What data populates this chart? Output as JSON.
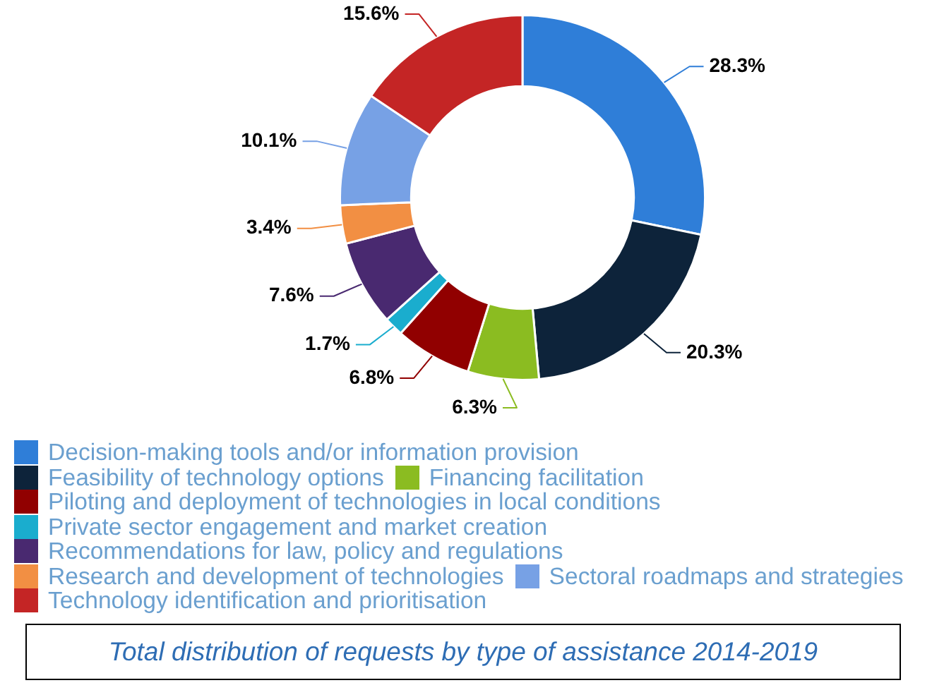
{
  "chart_data": {
    "type": "donut",
    "title": "Total distribution of requests by type of assistance 2014-2019",
    "categories": [
      "Decision-making tools and/or information provision",
      "Feasibility of technology options",
      "Financing facilitation",
      "Piloting and deployment of technologies in local conditions",
      "Private sector engagement and market creation",
      "Recommendations for law, policy and regulations",
      "Research and development of technologies",
      "Sectoral roadmaps and strategies",
      "Technology identification and prioritisation"
    ],
    "values": [
      28.3,
      20.3,
      6.3,
      6.8,
      1.7,
      7.6,
      3.4,
      10.1,
      15.6
    ],
    "value_labels": [
      "28.3%",
      "20.3%",
      "6.3%",
      "6.8%",
      "1.7%",
      "7.6%",
      "3.4%",
      "10.1%",
      "15.6%"
    ],
    "colors": [
      "#2f7ed8",
      "#0d233a",
      "#8bbc21",
      "#910000",
      "#1aadce",
      "#492970",
      "#f28f43",
      "#77a1e5",
      "#c42525"
    ],
    "legend": "bottom"
  }
}
